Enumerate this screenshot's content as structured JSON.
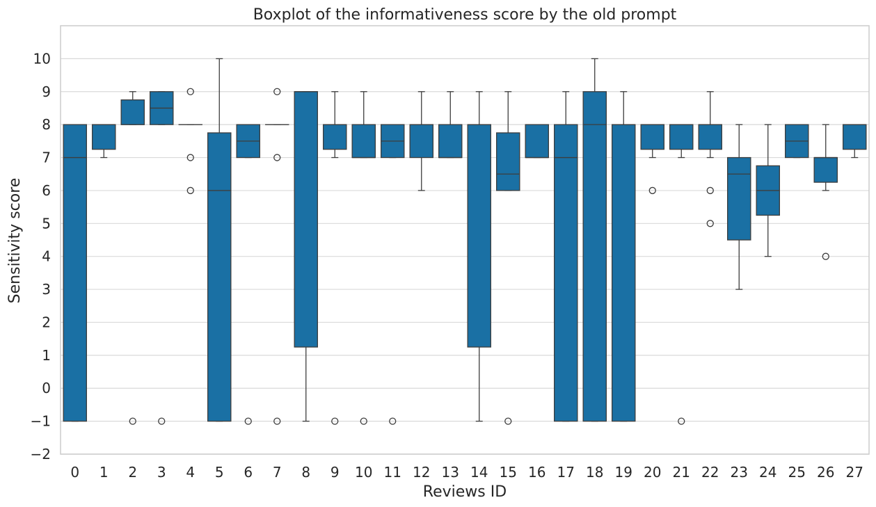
{
  "chart_data": {
    "type": "boxplot",
    "title": "Boxplot of the informativeness score by the old prompt",
    "xlabel": "Reviews ID",
    "ylabel": "Sensitivity score",
    "ylim": [
      -2,
      11
    ],
    "yticks": [
      -2,
      -1,
      0,
      1,
      2,
      3,
      4,
      5,
      6,
      7,
      8,
      9,
      10
    ],
    "grid": "horizontal",
    "colors": {
      "box": "#1a70a4",
      "line": "#3d3d3d",
      "grid": "#d9d9d9",
      "frame": "#cccccc"
    },
    "categories": [
      "0",
      "1",
      "2",
      "3",
      "4",
      "5",
      "6",
      "7",
      "8",
      "9",
      "10",
      "11",
      "12",
      "13",
      "14",
      "15",
      "16",
      "17",
      "18",
      "19",
      "20",
      "21",
      "22",
      "23",
      "24",
      "25",
      "26",
      "27"
    ],
    "boxes": [
      {
        "q1": -1,
        "median": 7,
        "q3": 8,
        "whisker_low": -1,
        "whisker_high": 8,
        "outliers": []
      },
      {
        "q1": 7.25,
        "median": 8,
        "q3": 8,
        "whisker_low": 7,
        "whisker_high": 8,
        "outliers": []
      },
      {
        "q1": 8,
        "median": 8,
        "q3": 8.75,
        "whisker_low": 8,
        "whisker_high": 9,
        "outliers": [
          -1
        ]
      },
      {
        "q1": 8,
        "median": 8.5,
        "q3": 9,
        "whisker_low": 8,
        "whisker_high": 9,
        "outliers": [
          -1
        ]
      },
      {
        "q1": 8,
        "median": 8,
        "q3": 8,
        "whisker_low": 8,
        "whisker_high": 8,
        "outliers": [
          9,
          7,
          6
        ]
      },
      {
        "q1": -1,
        "median": 6,
        "q3": 7.75,
        "whisker_low": -1,
        "whisker_high": 10,
        "outliers": []
      },
      {
        "q1": 7,
        "median": 7.5,
        "q3": 8,
        "whisker_low": 7,
        "whisker_high": 8,
        "outliers": [
          -1
        ]
      },
      {
        "q1": 8,
        "median": 8,
        "q3": 8,
        "whisker_low": 8,
        "whisker_high": 8,
        "outliers": [
          9,
          7,
          -1
        ]
      },
      {
        "q1": 1.25,
        "median": 9,
        "q3": 9,
        "whisker_low": -1,
        "whisker_high": 9,
        "outliers": []
      },
      {
        "q1": 7.25,
        "median": 8,
        "q3": 8,
        "whisker_low": 7,
        "whisker_high": 9,
        "outliers": [
          -1
        ]
      },
      {
        "q1": 7,
        "median": 7,
        "q3": 8,
        "whisker_low": 7,
        "whisker_high": 9,
        "outliers": [
          -1
        ]
      },
      {
        "q1": 7,
        "median": 7.5,
        "q3": 8,
        "whisker_low": 7,
        "whisker_high": 8,
        "outliers": [
          -1
        ]
      },
      {
        "q1": 7,
        "median": 8,
        "q3": 8,
        "whisker_low": 6,
        "whisker_high": 9,
        "outliers": []
      },
      {
        "q1": 7,
        "median": 7,
        "q3": 8,
        "whisker_low": 7,
        "whisker_high": 9,
        "outliers": []
      },
      {
        "q1": 1.25,
        "median": 8,
        "q3": 8,
        "whisker_low": -1,
        "whisker_high": 9,
        "outliers": []
      },
      {
        "q1": 6,
        "median": 6.5,
        "q3": 7.75,
        "whisker_low": 6,
        "whisker_high": 9,
        "outliers": [
          -1
        ]
      },
      {
        "q1": 7,
        "median": 7,
        "q3": 8,
        "whisker_low": 7,
        "whisker_high": 8,
        "outliers": []
      },
      {
        "q1": -1,
        "median": 7,
        "q3": 8,
        "whisker_low": -1,
        "whisker_high": 9,
        "outliers": []
      },
      {
        "q1": -1,
        "median": 8,
        "q3": 9,
        "whisker_low": -1,
        "whisker_high": 10,
        "outliers": []
      },
      {
        "q1": -1,
        "median": 8,
        "q3": 8,
        "whisker_low": -1,
        "whisker_high": 9,
        "outliers": []
      },
      {
        "q1": 7.25,
        "median": 8,
        "q3": 8,
        "whisker_low": 7,
        "whisker_high": 8,
        "outliers": [
          6
        ]
      },
      {
        "q1": 7.25,
        "median": 8,
        "q3": 8,
        "whisker_low": 7,
        "whisker_high": 8,
        "outliers": [
          -1
        ]
      },
      {
        "q1": 7.25,
        "median": 8,
        "q3": 8,
        "whisker_low": 7,
        "whisker_high": 9,
        "outliers": [
          6,
          5
        ]
      },
      {
        "q1": 4.5,
        "median": 6.5,
        "q3": 7,
        "whisker_low": 3,
        "whisker_high": 8,
        "outliers": []
      },
      {
        "q1": 5.25,
        "median": 6,
        "q3": 6.75,
        "whisker_low": 4,
        "whisker_high": 8,
        "outliers": []
      },
      {
        "q1": 7,
        "median": 7.5,
        "q3": 8,
        "whisker_low": 7,
        "whisker_high": 8,
        "outliers": []
      },
      {
        "q1": 6.25,
        "median": 7,
        "q3": 7,
        "whisker_low": 6,
        "whisker_high": 8,
        "outliers": [
          4
        ]
      },
      {
        "q1": 7.25,
        "median": 8,
        "q3": 8,
        "whisker_low": 7,
        "whisker_high": 8,
        "outliers": []
      }
    ]
  }
}
